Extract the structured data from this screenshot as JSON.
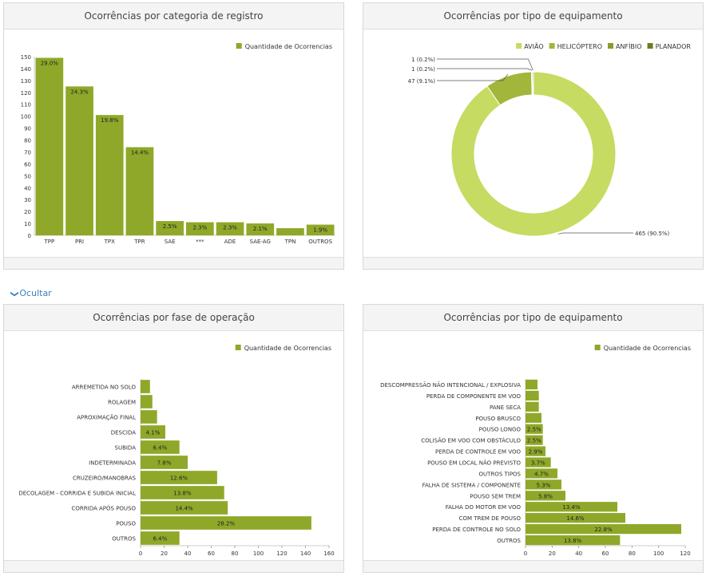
{
  "toggle": {
    "label": "Ocultar",
    "icon": "chevron-down-icon"
  },
  "colors": {
    "bar": "#8fa829",
    "donut": [
      "#c5db62",
      "#a2b63c",
      "#8a9c29",
      "#6e7d1c"
    ]
  },
  "chart_data": [
    {
      "type": "bar",
      "title": "Ocorrências por categoria de registro",
      "legend": "Quantidade de Ocorrencias",
      "legend_position": "top-right",
      "categories": [
        "TPP",
        "PRI",
        "TPX",
        "TPR",
        "SAE",
        "***",
        "ADE",
        "SAE-AG",
        "TPN",
        "OUTROS"
      ],
      "values": [
        149,
        125,
        101,
        74,
        12,
        11,
        11,
        10,
        6,
        9
      ],
      "labels": [
        "29.0%",
        "24.3%",
        "19.8%",
        "14.4%",
        "2.5%",
        "2.3%",
        "2.3%",
        "2.1%",
        "",
        "1.9%"
      ],
      "yticks": [
        0,
        10,
        20,
        30,
        40,
        50,
        60,
        70,
        80,
        90,
        100,
        110,
        120,
        130,
        140,
        150
      ],
      "ylim": [
        0,
        150
      ]
    },
    {
      "type": "pie",
      "title": "Ocorrências por tipo de equipamento",
      "legend_position": "top-right",
      "slices": [
        {
          "name": "AVIÃO",
          "value": 465,
          "label": "465 (90.5%)"
        },
        {
          "name": "HELICÓPTERO",
          "value": 47,
          "label": "47 (9.1%)"
        },
        {
          "name": "ANFÍBIO",
          "value": 1,
          "label": "1 (0.2%)"
        },
        {
          "name": "PLANADOR",
          "value": 1,
          "label": "1 (0.2%)"
        }
      ]
    },
    {
      "type": "bar",
      "orientation": "horizontal",
      "title": "Ocorrências por fase de operação",
      "legend": "Quantidade de Ocorrencias",
      "legend_position": "top-right",
      "categories": [
        "ARREMETIDA NO SOLO",
        "ROLAGEM",
        "APROXIMAÇÃO FINAL",
        "DESCIDA",
        "SUBIDA",
        "INDETERMINADA",
        "CRUZEIRO/MANOBRAS",
        "DECOLAGEM - CORRIDA E SUBIDA INICIAL",
        "CORRIDA APÓS POUSO",
        "POUSO",
        "OUTROS"
      ],
      "values": [
        8,
        10,
        14,
        21,
        33,
        40,
        65,
        71,
        74,
        145,
        33
      ],
      "labels": [
        "",
        "",
        "",
        "4.1%",
        "6.4%",
        "7.8%",
        "12.6%",
        "13.8%",
        "14.4%",
        "28.2%",
        "6.4%"
      ],
      "xticks": [
        0,
        20,
        40,
        60,
        80,
        100,
        120,
        140,
        160
      ],
      "xlim": [
        0,
        160
      ]
    },
    {
      "type": "bar",
      "orientation": "horizontal",
      "title": "Ocorrências por tipo de equipamento",
      "legend": "Quantidade de Ocorrencias",
      "legend_position": "top-right",
      "categories": [
        "DESCOMPRESSÃO NÃO INTENCIONAL / EXPLOSIVA",
        "PERDA DE COMPONENTE EM VOO",
        "PANE SECA",
        "POUSO BRUSCO",
        "POUSO LONGO",
        "COLISÃO EM VOO COM OBSTÁCULO",
        "PERDA DE CONTROLE EM VOO",
        "POUSO EM LOCAL NÃO PREVISTO",
        "OUTROS TIPOS",
        "FALHA DE SISTEMA / COMPONENTE",
        "POUSO SEM TREM",
        "FALHA DO MOTOR EM VOO",
        "COM TREM DE POUSO",
        "PERDA DE CONTROLE NO SOLO",
        "OUTROS"
      ],
      "values": [
        9,
        10,
        10,
        12,
        13,
        13,
        15,
        19,
        24,
        27,
        30,
        69,
        75,
        117,
        71
      ],
      "labels": [
        "",
        "",
        "",
        "",
        "2.5%",
        "2.5%",
        "2.9%",
        "3.7%",
        "4.7%",
        "5.3%",
        "5.8%",
        "13.4%",
        "14.6%",
        "22.8%",
        "13.8%"
      ],
      "xticks": [
        0,
        20,
        40,
        60,
        80,
        100,
        120
      ],
      "xlim": [
        0,
        120
      ]
    }
  ]
}
